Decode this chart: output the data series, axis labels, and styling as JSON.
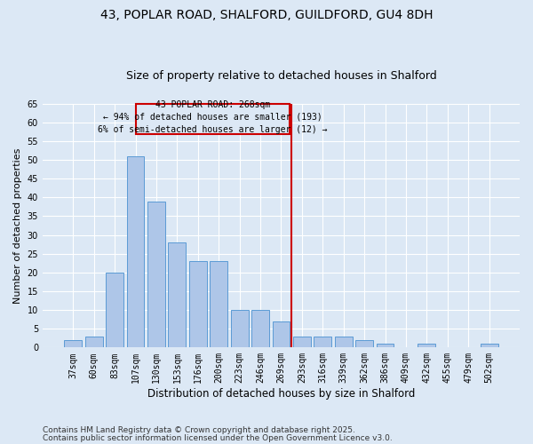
{
  "title_line1": "43, POPLAR ROAD, SHALFORD, GUILDFORD, GU4 8DH",
  "title_line2": "Size of property relative to detached houses in Shalford",
  "xlabel": "Distribution of detached houses by size in Shalford",
  "ylabel": "Number of detached properties",
  "categories": [
    "37sqm",
    "60sqm",
    "83sqm",
    "107sqm",
    "130sqm",
    "153sqm",
    "176sqm",
    "200sqm",
    "223sqm",
    "246sqm",
    "269sqm",
    "293sqm",
    "316sqm",
    "339sqm",
    "362sqm",
    "386sqm",
    "409sqm",
    "432sqm",
    "455sqm",
    "479sqm",
    "502sqm"
  ],
  "values": [
    2,
    3,
    20,
    51,
    39,
    28,
    23,
    23,
    10,
    10,
    7,
    3,
    3,
    3,
    2,
    1,
    0,
    1,
    0,
    0,
    1
  ],
  "bar_color": "#aec6e8",
  "bar_edge_color": "#5b9bd5",
  "background_color": "#dce8f5",
  "grid_color": "#ffffff",
  "vline_color": "#cc0000",
  "annotation_text": "43 POPLAR ROAD: 268sqm\n← 94% of detached houses are smaller (193)\n6% of semi-detached houses are larger (12) →",
  "annotation_box_color": "#cc0000",
  "ylim": [
    0,
    65
  ],
  "yticks": [
    0,
    5,
    10,
    15,
    20,
    25,
    30,
    35,
    40,
    45,
    50,
    55,
    60,
    65
  ],
  "footer_line1": "Contains HM Land Registry data © Crown copyright and database right 2025.",
  "footer_line2": "Contains public sector information licensed under the Open Government Licence v3.0.",
  "title_fontsize": 10,
  "subtitle_fontsize": 9,
  "tick_fontsize": 7,
  "xlabel_fontsize": 8.5,
  "ylabel_fontsize": 8,
  "footer_fontsize": 6.5
}
